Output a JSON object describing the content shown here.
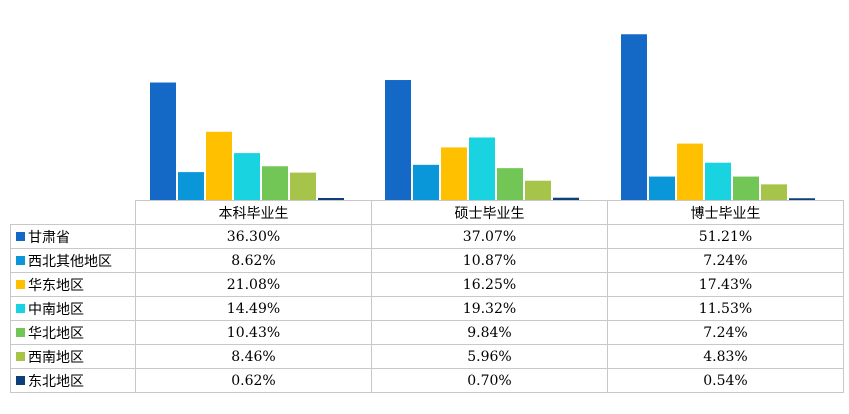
{
  "chart_data": {
    "type": "bar",
    "categories": [
      "本科毕业生",
      "硕士毕业生",
      "博士毕业生"
    ],
    "series": [
      {
        "name": "甘肃省",
        "color": "#1468c6",
        "values": [
          36.3,
          37.07,
          51.21
        ],
        "labels": [
          "36.30%",
          "37.07%",
          "51.21%"
        ]
      },
      {
        "name": "西北其他地区",
        "color": "#0a97d9",
        "values": [
          8.62,
          10.87,
          7.24
        ],
        "labels": [
          "8.62%",
          "10.87%",
          "7.24%"
        ]
      },
      {
        "name": "华东地区",
        "color": "#ffc000",
        "values": [
          21.08,
          16.25,
          17.43
        ],
        "labels": [
          "21.08%",
          "16.25%",
          "17.43%"
        ]
      },
      {
        "name": "中南地区",
        "color": "#19d3e1",
        "values": [
          14.49,
          19.32,
          11.53
        ],
        "labels": [
          "14.49%",
          "19.32%",
          "11.53%"
        ]
      },
      {
        "name": "华北地区",
        "color": "#72c655",
        "values": [
          10.43,
          9.84,
          7.24
        ],
        "labels": [
          "10.43%",
          "9.84%",
          "7.24%"
        ]
      },
      {
        "name": "西南地区",
        "color": "#a6c44a",
        "values": [
          8.46,
          5.96,
          4.83
        ],
        "labels": [
          "8.46%",
          "5.96%",
          "4.83%"
        ]
      },
      {
        "name": "东北地区",
        "color": "#0d3f7a",
        "values": [
          0.62,
          0.7,
          0.54
        ],
        "labels": [
          "0.62%",
          "0.70%",
          "0.54%"
        ]
      }
    ],
    "ylim": [
      0,
      55
    ],
    "grid": false,
    "legend": "data-table"
  }
}
